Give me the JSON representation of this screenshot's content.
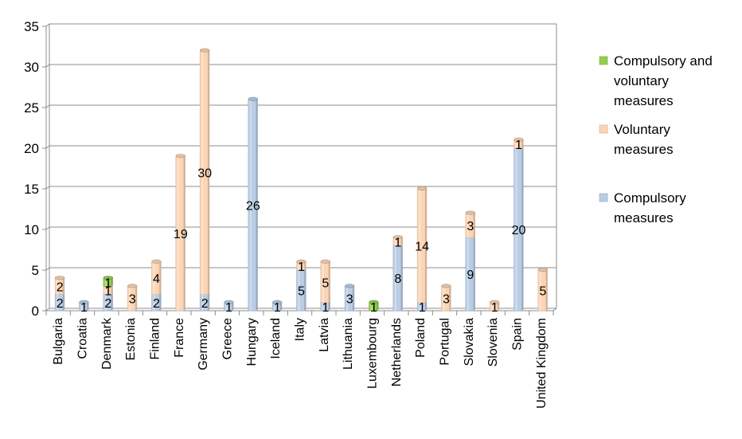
{
  "chart_data": {
    "type": "bar",
    "stacked": true,
    "style": "3d-cylinder",
    "title": "",
    "xlabel": "",
    "ylabel": "",
    "ylim": [
      0,
      35
    ],
    "yticks": [
      0,
      5,
      10,
      15,
      20,
      25,
      30,
      35
    ],
    "grid": true,
    "legend_position": "right",
    "categories": [
      "Bulgaria",
      "Croatia",
      "Denmark",
      "Estonia",
      "Finland",
      "France",
      "Germany",
      "Greece",
      "Hungary",
      "Iceland",
      "Italy",
      "Latvia",
      "Lithuania",
      "Luxembourg",
      "Netherlands",
      "Poland",
      "Portugal",
      "Slovakia",
      "Slovenia",
      "Spain",
      "United Kingdom"
    ],
    "series": [
      {
        "name": "Compulsory measures",
        "color": "#b9cde5",
        "values": [
          2,
          1,
          2,
          0,
          2,
          0,
          2,
          1,
          26,
          1,
          5,
          1,
          3,
          0,
          8,
          1,
          0,
          9,
          0,
          20,
          0
        ]
      },
      {
        "name": "Voluntary measures",
        "color": "#fcd5b5",
        "values": [
          2,
          0,
          1,
          3,
          4,
          19,
          30,
          0,
          0,
          0,
          1,
          5,
          0,
          0,
          1,
          14,
          3,
          3,
          1,
          1,
          5
        ]
      },
      {
        "name": "Compulsory and voluntary measures",
        "color": "#92d050",
        "values": [
          0,
          0,
          1,
          0,
          0,
          0,
          0,
          0,
          0,
          0,
          0,
          0,
          0,
          1,
          0,
          0,
          0,
          0,
          0,
          0,
          0
        ]
      }
    ],
    "legend": [
      {
        "series": 2,
        "lines": [
          "Compulsory and",
          "voluntary",
          "measures"
        ]
      },
      {
        "series": 1,
        "lines": [
          "Voluntary",
          "measures"
        ]
      },
      {
        "series": 0,
        "lines": [
          "Compulsory",
          "measures"
        ]
      }
    ]
  }
}
